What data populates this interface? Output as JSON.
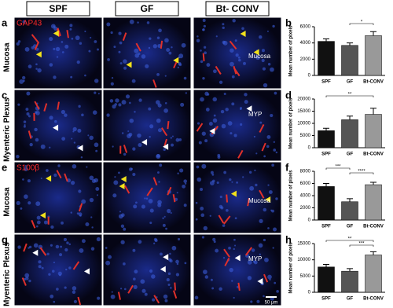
{
  "figure": {
    "columns": [
      "SPF",
      "GF",
      "Bt- CONV"
    ],
    "rows": [
      {
        "letter": "a",
        "label": "Mucosa"
      },
      {
        "letter": "c",
        "label": "Myenteric Plexus"
      },
      {
        "letter": "e",
        "label": "Mucosa"
      },
      {
        "letter": "g",
        "label": "Myenteric Plexus"
      }
    ],
    "stains": [
      "GAP43",
      "S100β"
    ],
    "region_labels": [
      "Mucosa",
      "MYP",
      "Mucosa",
      "MYP"
    ],
    "scale_bar": "50 µm"
  },
  "chart_data": [
    {
      "type": "bar",
      "panel": "b",
      "y_label": "Mean number of pixels",
      "categories": [
        "SPF",
        "GF",
        "Bt-CONV"
      ],
      "values": [
        4200,
        3700,
        4900
      ],
      "errors": [
        300,
        300,
        500
      ],
      "colors": [
        "#111111",
        "#555555",
        "#999999"
      ],
      "ylim": [
        0,
        6000
      ],
      "yticks": [
        0,
        2000,
        4000,
        6000
      ],
      "annotations": [
        {
          "label": "*",
          "between": [
            "GF",
            "Bt-CONV"
          ]
        }
      ]
    },
    {
      "type": "bar",
      "panel": "d",
      "y_label": "Mean number of pixels",
      "categories": [
        "SPF",
        "GF",
        "Bt-CONV"
      ],
      "values": [
        7000,
        11500,
        13700
      ],
      "errors": [
        1000,
        1500,
        2500
      ],
      "colors": [
        "#111111",
        "#555555",
        "#999999"
      ],
      "ylim": [
        0,
        20000
      ],
      "yticks": [
        0,
        5000,
        10000,
        15000,
        20000
      ],
      "annotations": [
        {
          "label": "**",
          "between": [
            "SPF",
            "Bt-CONV"
          ]
        }
      ]
    },
    {
      "type": "bar",
      "panel": "f",
      "y_label": "Mean number of pixels",
      "categories": [
        "SPF",
        "GF",
        "Bt-CONV"
      ],
      "values": [
        5500,
        3000,
        5800
      ],
      "errors": [
        500,
        500,
        400
      ],
      "colors": [
        "#111111",
        "#555555",
        "#999999"
      ],
      "ylim": [
        0,
        8000
      ],
      "yticks": [
        0,
        2000,
        4000,
        6000,
        8000
      ],
      "annotations": [
        {
          "label": "***",
          "between": [
            "SPF",
            "GF"
          ]
        },
        {
          "label": "****",
          "between": [
            "GF",
            "Bt-CONV"
          ]
        }
      ]
    },
    {
      "type": "bar",
      "panel": "h",
      "y_label": "Mean number of pixels",
      "categories": [
        "SPF",
        "GF",
        "Bt-CONV"
      ],
      "values": [
        7800,
        6500,
        11500
      ],
      "errors": [
        800,
        800,
        1000
      ],
      "colors": [
        "#111111",
        "#555555",
        "#999999"
      ],
      "ylim": [
        0,
        15000
      ],
      "yticks": [
        0,
        5000,
        10000,
        15000
      ],
      "annotations": [
        {
          "label": "**",
          "between": [
            "SPF",
            "Bt-CONV"
          ]
        },
        {
          "label": "***",
          "between": [
            "GF",
            "Bt-CONV"
          ]
        }
      ]
    }
  ]
}
